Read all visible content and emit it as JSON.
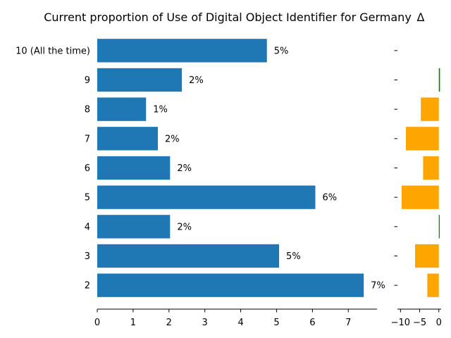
{
  "chart_data": [
    {
      "type": "bar",
      "orientation": "horizontal",
      "title": "Current proportion of Use of Digital Object Identifier for Germany",
      "categories": [
        "10 (All the time)",
        "9",
        "8",
        "7",
        "6",
        "5",
        "4",
        "3",
        "2"
      ],
      "values": [
        4.73,
        2.36,
        1.36,
        1.69,
        2.03,
        6.08,
        2.03,
        5.07,
        7.43
      ],
      "data_labels": [
        "5%",
        "2%",
        "1%",
        "2%",
        "2%",
        "6%",
        "2%",
        "5%",
        "7%"
      ],
      "xlim": [
        0,
        7.8
      ],
      "xticks": [
        "0",
        "1",
        "2",
        "3",
        "4",
        "5",
        "6",
        "7"
      ],
      "bar_color": "#1f77b4",
      "grid": false
    },
    {
      "type": "bar",
      "orientation": "horizontal",
      "title": "Δ",
      "categories": [
        "10 (All the time)",
        "9",
        "8",
        "7",
        "6",
        "5",
        "4",
        "3",
        "2"
      ],
      "values": [
        0,
        0.3,
        -4.7,
        -8.6,
        -4.1,
        -9.7,
        0.2,
        -6.2,
        -3.0
      ],
      "xlim": [
        -10.8,
        0.6
      ],
      "xticks": [
        "−10",
        "−5",
        "0"
      ],
      "positive_color": "#008000",
      "negative_color": "#ffa500",
      "grid": false
    }
  ]
}
